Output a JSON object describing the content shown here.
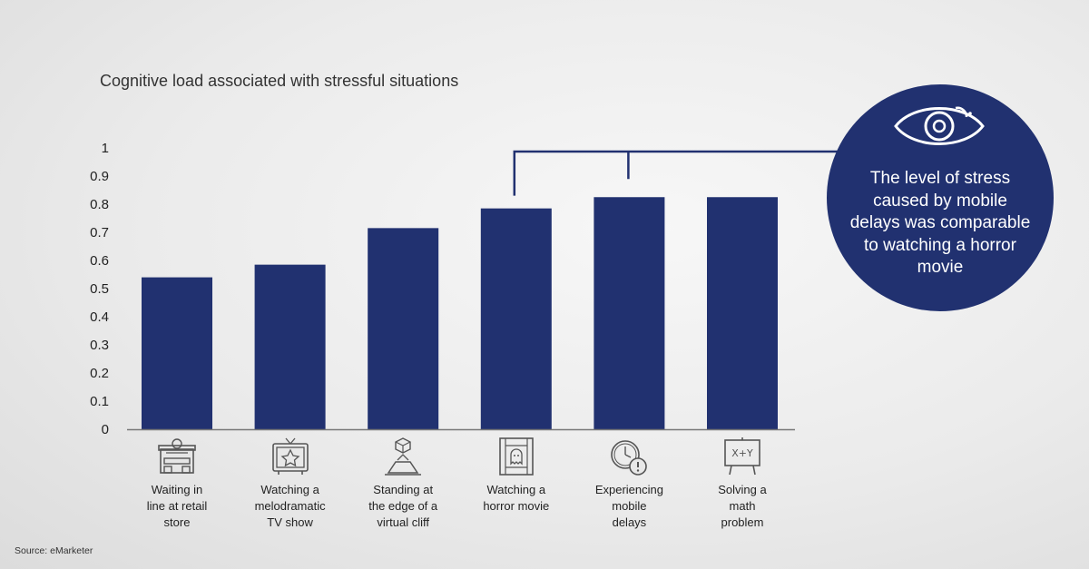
{
  "chart_data": {
    "type": "bar",
    "title": "Cognitive load associated with stressful situations",
    "categories": [
      "Waiting in line at retail store",
      "Watching a melodramatic TV show",
      "Standing at the edge of a virtual cliff",
      "Watching a horror movie",
      "Experiencing mobile delays",
      "Solving a math problem"
    ],
    "category_lines": [
      [
        "Waiting in",
        "line at retail",
        "store"
      ],
      [
        "Watching a",
        "melodramatic",
        "TV show"
      ],
      [
        "Standing at",
        "the edge of a",
        "virtual cliff"
      ],
      [
        "Watching a",
        "horror movie"
      ],
      [
        "Experiencing",
        "mobile",
        "delays"
      ],
      [
        "Solving a",
        "math",
        "problem"
      ]
    ],
    "values": [
      0.54,
      0.585,
      0.715,
      0.785,
      0.825,
      0.825
    ],
    "ylim": [
      0,
      1
    ],
    "yticks": [
      "0",
      "0.1",
      "0.2",
      "0.3",
      "0.4",
      "0.5",
      "0.6",
      "0.7",
      "0.8",
      "0.9",
      "1"
    ],
    "bar_color": "#213170",
    "grid": false,
    "icons": [
      "retail-store-icon",
      "tv-icon",
      "virtual-cliff-icon",
      "horror-movie-icon",
      "mobile-delay-icon",
      "math-board-icon"
    ]
  },
  "callout": {
    "text": "The level of stress caused by mobile delays was comparable to watching a horror movie",
    "icon": "eye-icon",
    "color": "#213170"
  },
  "source": "Source: eMarketer"
}
